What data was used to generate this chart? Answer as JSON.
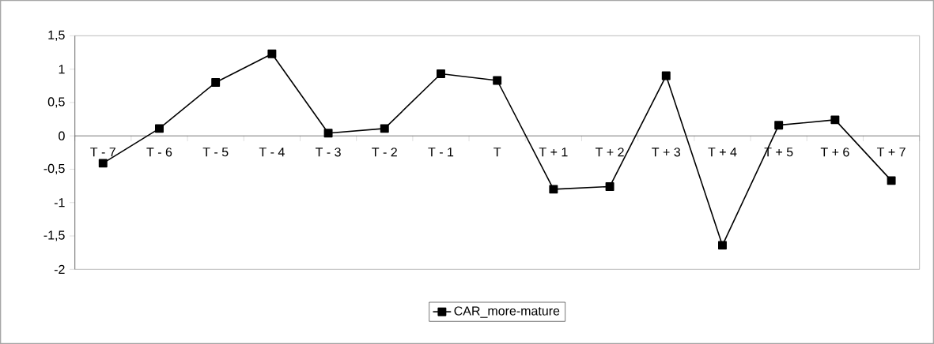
{
  "chart_data": {
    "type": "line",
    "categories": [
      "T - 7",
      "T - 6",
      "T - 5",
      "T - 4",
      "T - 3",
      "T - 2",
      "T - 1",
      "T",
      "T + 1",
      "T + 2",
      "T + 3",
      "T + 4",
      "T + 5",
      "T + 6",
      "T + 7"
    ],
    "series": [
      {
        "name": "CAR_more-mature",
        "color": "#000000",
        "values": [
          -0.41,
          0.11,
          0.8,
          1.23,
          0.04,
          0.11,
          0.93,
          0.83,
          -0.8,
          -0.76,
          0.9,
          -1.64,
          0.16,
          0.24,
          -0.67
        ]
      }
    ],
    "ylim": [
      -2,
      1.5
    ],
    "yticks": [
      -2,
      {
        "value": -1.5,
        "label": "-1,5"
      },
      -1,
      {
        "value": -0.5,
        "label": "-0,5"
      },
      0,
      {
        "value": 0.5,
        "label": "0,5"
      },
      1,
      {
        "value": 1.5,
        "label": "1,5"
      }
    ],
    "grid": false,
    "legend": "bottom",
    "marker": "square",
    "line_style": "solid"
  }
}
